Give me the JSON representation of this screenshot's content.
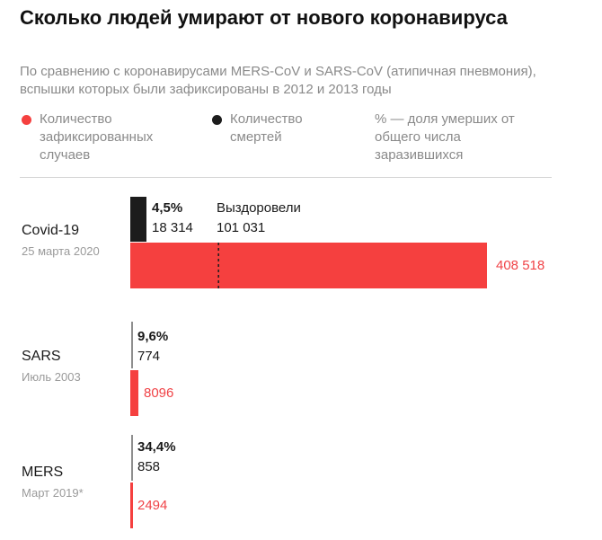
{
  "title": "Сколько людей умирают от нового коронавируса",
  "subtitle": "По сравнению с коронавирусами MERS-CoV и SARS-CoV (атипичная пневмония), вспышки которых были зафиксированы в 2012 и 2013 годы",
  "legend": {
    "cases": "Количество зафиксированных случаев",
    "deaths": "Количество смертей",
    "percent": "% — доля умерших от общего числа заразившихся"
  },
  "colors": {
    "cases": "#f5403f",
    "deaths": "#1c1c1c",
    "axis": "#1c1c1c"
  },
  "chart_data": {
    "type": "bar",
    "title": "Сколько людей умирают от нового коронавируса",
    "orientation": "horizontal",
    "categories": [
      {
        "name": "Covid-19",
        "date": "25 марта 2020"
      },
      {
        "name": "SARS",
        "date": "Июль 2003"
      },
      {
        "name": "MERS",
        "date": "Март 2019*"
      }
    ],
    "series": [
      {
        "name": "Количество зафиксированных случаев",
        "values": [
          408518,
          8096,
          2494
        ]
      },
      {
        "name": "Количество смертей",
        "values": [
          18314,
          774,
          858
        ]
      }
    ],
    "case_labels": [
      "408 518",
      "8096",
      "2494"
    ],
    "death_labels": [
      "18 314",
      "774",
      "858"
    ],
    "percent_labels": [
      "4,5%",
      "9,6%",
      "34,4%"
    ],
    "recovered": {
      "category": "Covid-19",
      "label": "Выздоровели",
      "value": 101031,
      "value_label": "101 031"
    }
  }
}
